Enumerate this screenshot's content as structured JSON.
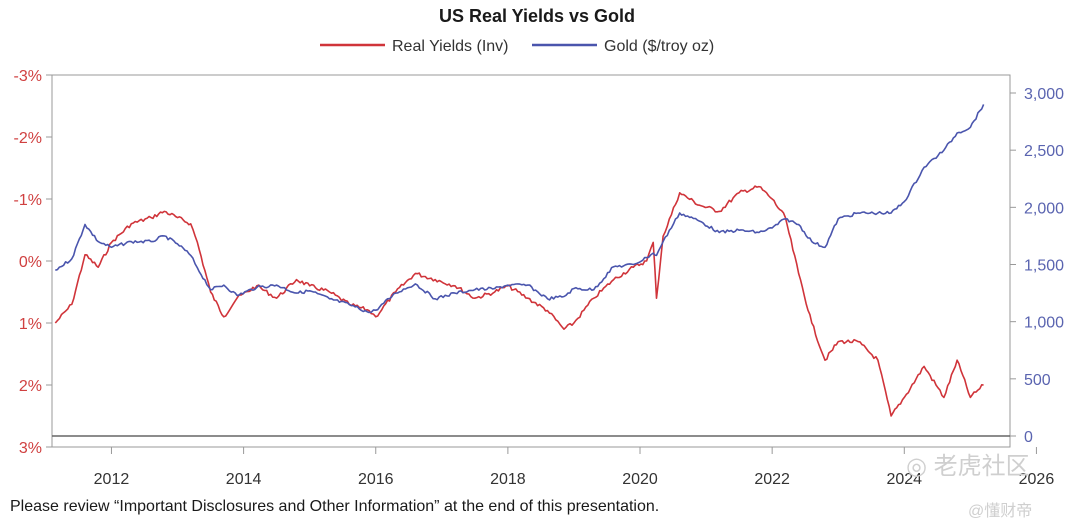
{
  "footnote": "Please review “Important Disclosures and Other Information” at the end of this presentation.",
  "watermark": "◎ 老虎社区",
  "watermark_sub": "@懂财帝",
  "colors": {
    "real_yields": "#d0343a",
    "gold": "#4a55ad",
    "axis": "#888888"
  },
  "chart_data": {
    "type": "line",
    "title": "US Real Yields vs Gold",
    "legend_position": "top-center",
    "grid": false,
    "xlim": [
      2011.1,
      2025.6
    ],
    "x_ticks": [
      2012,
      2014,
      2016,
      2018,
      2020,
      2022,
      2024,
      2026
    ],
    "left_axis": {
      "ylim": [
        -3,
        3
      ],
      "inverted": true,
      "ticks": [
        -3,
        -2,
        -1,
        0,
        1,
        2,
        3
      ],
      "tick_labels": [
        "-3%",
        "-2%",
        "-1%",
        "0%",
        "1%",
        "2%",
        "3%"
      ]
    },
    "right_axis": {
      "ylim": [
        0,
        3000
      ],
      "ticks": [
        0,
        500,
        1000,
        1500,
        2000,
        2500,
        3000
      ],
      "tick_labels": [
        "0",
        "500",
        "1,000",
        "1,500",
        "2,000",
        "2,500",
        "3,000"
      ]
    },
    "series": [
      {
        "name": "Real Yields (Inv)",
        "axis": "left",
        "x": [
          2011.15,
          2011.4,
          2011.6,
          2011.8,
          2012.0,
          2012.3,
          2012.6,
          2012.8,
          2013.0,
          2013.2,
          2013.3,
          2013.5,
          2013.7,
          2013.9,
          2014.2,
          2014.5,
          2014.8,
          2015.0,
          2015.3,
          2015.6,
          2015.9,
          2016.0,
          2016.3,
          2016.6,
          2016.9,
          2017.2,
          2017.5,
          2017.8,
          2018.0,
          2018.3,
          2018.6,
          2018.85,
          2019.0,
          2019.3,
          2019.6,
          2019.9,
          2020.1,
          2020.2,
          2020.25,
          2020.35,
          2020.6,
          2020.9,
          2021.2,
          2021.5,
          2021.8,
          2022.0,
          2022.2,
          2022.4,
          2022.6,
          2022.8,
          2023.0,
          2023.3,
          2023.6,
          2023.8,
          2024.0,
          2024.3,
          2024.6,
          2024.8,
          2025.0,
          2025.2
        ],
        "y": [
          1.0,
          0.7,
          -0.1,
          0.1,
          -0.3,
          -0.6,
          -0.7,
          -0.8,
          -0.7,
          -0.6,
          -0.3,
          0.5,
          0.9,
          0.6,
          0.4,
          0.6,
          0.3,
          0.4,
          0.5,
          0.7,
          0.8,
          0.9,
          0.5,
          0.2,
          0.3,
          0.4,
          0.6,
          0.5,
          0.4,
          0.6,
          0.8,
          1.1,
          1.0,
          0.6,
          0.3,
          0.1,
          0.0,
          -0.3,
          0.6,
          -0.4,
          -1.1,
          -0.9,
          -0.8,
          -1.1,
          -1.2,
          -1.0,
          -0.7,
          0.2,
          1.0,
          1.6,
          1.3,
          1.3,
          1.6,
          2.5,
          2.2,
          1.7,
          2.2,
          1.6,
          2.2,
          2.0
        ]
      },
      {
        "name": "Gold ($/troy oz)",
        "axis": "right",
        "x": [
          2011.15,
          2011.4,
          2011.6,
          2011.8,
          2012.0,
          2012.3,
          2012.6,
          2012.8,
          2013.0,
          2013.2,
          2013.3,
          2013.5,
          2013.7,
          2013.9,
          2014.2,
          2014.5,
          2014.8,
          2015.0,
          2015.3,
          2015.6,
          2015.9,
          2016.0,
          2016.3,
          2016.6,
          2016.9,
          2017.2,
          2017.5,
          2017.8,
          2018.0,
          2018.3,
          2018.6,
          2018.85,
          2019.0,
          2019.3,
          2019.6,
          2019.9,
          2020.1,
          2020.2,
          2020.25,
          2020.35,
          2020.6,
          2020.9,
          2021.2,
          2021.5,
          2021.8,
          2022.0,
          2022.2,
          2022.4,
          2022.6,
          2022.8,
          2023.0,
          2023.3,
          2023.6,
          2023.8,
          2024.0,
          2024.3,
          2024.6,
          2024.8,
          2025.0,
          2025.2
        ],
        "y": [
          1450,
          1550,
          1850,
          1700,
          1650,
          1700,
          1700,
          1750,
          1680,
          1580,
          1470,
          1280,
          1320,
          1230,
          1300,
          1320,
          1250,
          1270,
          1200,
          1150,
          1080,
          1100,
          1250,
          1330,
          1200,
          1250,
          1280,
          1290,
          1320,
          1320,
          1200,
          1220,
          1290,
          1280,
          1480,
          1500,
          1560,
          1600,
          1580,
          1700,
          1950,
          1880,
          1780,
          1800,
          1780,
          1820,
          1900,
          1850,
          1700,
          1650,
          1900,
          1950,
          1950,
          1950,
          2050,
          2350,
          2500,
          2650,
          2700,
          2900
        ]
      }
    ]
  }
}
